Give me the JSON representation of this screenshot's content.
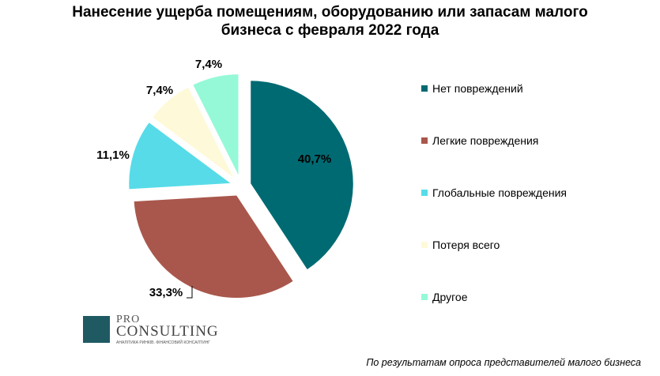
{
  "title_lines": [
    "Нанесение ущерба помещениям, оборудованию или запасам малого",
    "бизнеса с февраля 2022 года"
  ],
  "chart_data": {
    "type": "pie",
    "title": "Нанесение ущерба помещениям, оборудованию или запасам малого бизнеса с февраля 2022 года",
    "categories": [
      "Нет повреждений",
      "Легкие повреждения",
      "Глобальные повреждения",
      "Потеря всего",
      "Другое"
    ],
    "values": [
      40.7,
      33.3,
      11.1,
      7.4,
      7.4
    ],
    "value_labels": [
      "40,7%",
      "33,3%",
      "11,1%",
      "7,4%",
      "7,4%"
    ],
    "colors": [
      "#006a72",
      "#a9574c",
      "#57dbe8",
      "#fef9d8",
      "#95f9d8"
    ],
    "exploded": true,
    "legend_position": "right"
  },
  "logo": {
    "text_top": "PRO",
    "text_main": "CONSULTING",
    "tagline": "АНАЛІТИКА РИНКІВ. ФІНАНСОВИЙ КОНСАЛТИНГ"
  },
  "source_note": "По результатам опроса представителей малого бизнеса"
}
